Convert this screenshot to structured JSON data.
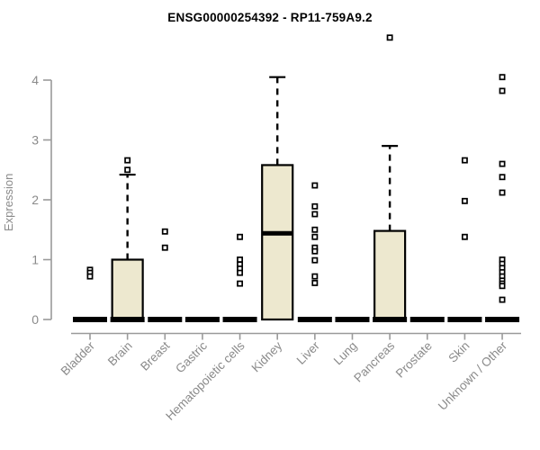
{
  "chart_data": {
    "type": "box",
    "title": "ENSG00000254392 - RP11-759A9.2",
    "xlabel": "",
    "ylabel": "Expression",
    "ylim": [
      0,
      4
    ],
    "yticks": [
      0,
      1,
      2,
      3,
      4
    ],
    "grid": false,
    "legend": "none",
    "categories": [
      "Bladder",
      "Brain",
      "Breast",
      "Gastric",
      "Hematopoietic cells",
      "Kidney",
      "Liver",
      "Lung",
      "Pancreas",
      "Prostate",
      "Skin",
      "Unknown / Other"
    ],
    "series": [
      {
        "category": "Bladder",
        "q1": 0,
        "median": 0,
        "q3": 0,
        "whisker_low": 0,
        "whisker_high": 0,
        "outliers": [
          0.83,
          0.78,
          0.72
        ]
      },
      {
        "category": "Brain",
        "q1": 0,
        "median": 0,
        "q3": 1.0,
        "whisker_low": 0,
        "whisker_high": 2.42,
        "outliers": [
          2.66,
          2.5
        ]
      },
      {
        "category": "Breast",
        "q1": 0,
        "median": 0,
        "q3": 0,
        "whisker_low": 0,
        "whisker_high": 0,
        "outliers": [
          1.47,
          1.2
        ]
      },
      {
        "category": "Gastric",
        "q1": 0,
        "median": 0,
        "q3": 0,
        "whisker_low": 0,
        "whisker_high": 0,
        "outliers": []
      },
      {
        "category": "Hematopoietic cells",
        "q1": 0,
        "median": 0,
        "q3": 0,
        "whisker_low": 0,
        "whisker_high": 0,
        "outliers": [
          1.38,
          1.0,
          0.92,
          0.85,
          0.78,
          0.6
        ]
      },
      {
        "category": "Kidney",
        "q1": 0,
        "median": 1.44,
        "q3": 2.58,
        "whisker_low": 0,
        "whisker_high": 4.05,
        "outliers": []
      },
      {
        "category": "Liver",
        "q1": 0,
        "median": 0,
        "q3": 0,
        "whisker_low": 0,
        "whisker_high": 0,
        "outliers": [
          2.24,
          1.89,
          1.76,
          1.5,
          1.38,
          1.2,
          1.14,
          0.99,
          0.72,
          0.61
        ]
      },
      {
        "category": "Lung",
        "q1": 0,
        "median": 0,
        "q3": 0,
        "whisker_low": 0,
        "whisker_high": 0,
        "outliers": []
      },
      {
        "category": "Pancreas",
        "q1": 0,
        "median": 0,
        "q3": 1.48,
        "whisker_low": 0,
        "whisker_high": 2.9,
        "outliers": [
          4.71
        ]
      },
      {
        "category": "Prostate",
        "q1": 0,
        "median": 0,
        "q3": 0,
        "whisker_low": 0,
        "whisker_high": 0,
        "outliers": []
      },
      {
        "category": "Skin",
        "q1": 0,
        "median": 0,
        "q3": 0,
        "whisker_low": 0,
        "whisker_high": 0,
        "outliers": [
          2.66,
          1.98,
          1.38
        ]
      },
      {
        "category": "Unknown / Other",
        "q1": 0,
        "median": 0,
        "q3": 0,
        "whisker_low": 0,
        "whisker_high": 0,
        "outliers": [
          4.05,
          3.82,
          2.6,
          2.38,
          2.12,
          1.0,
          0.93,
          0.86,
          0.79,
          0.72,
          0.65,
          0.6,
          0.56,
          0.33
        ]
      }
    ]
  },
  "colors": {
    "box_fill": "#ede8cf",
    "box_stroke": "#000000",
    "median": "#000000",
    "outlier": "#000000",
    "axis": "#9a9a9a",
    "tick_text": "#8a8a8a",
    "title_text": "#000000"
  }
}
